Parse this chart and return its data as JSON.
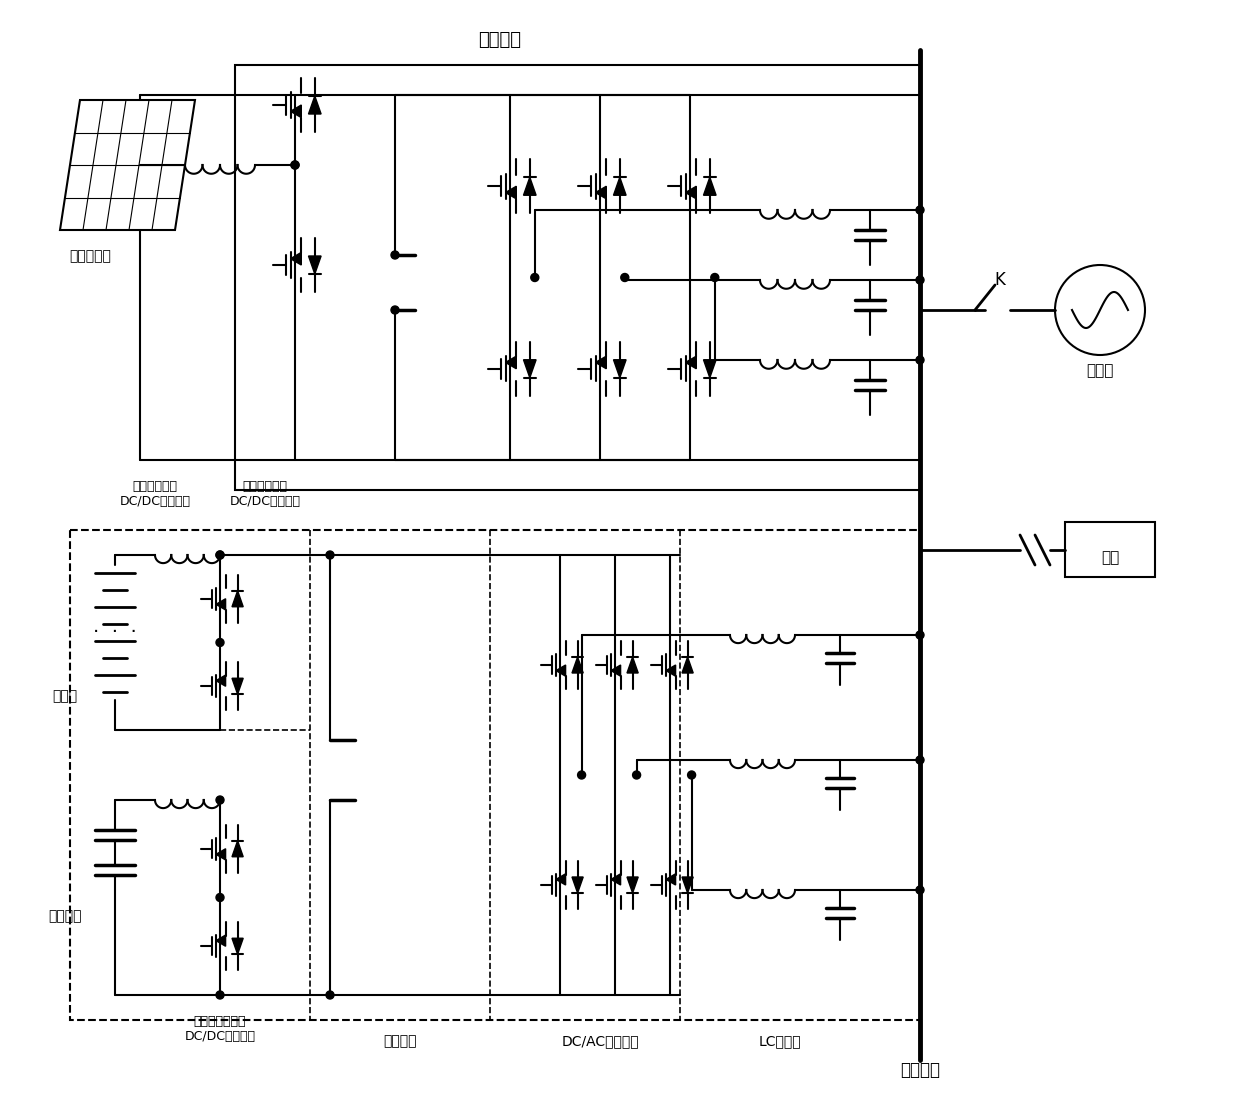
{
  "bg_color": "#ffffff",
  "line_color": "#000000",
  "lw": 1.5,
  "lw_thick": 3.5,
  "labels": {
    "pv_system": "光伏系统",
    "pv_panel": "光伏电池板",
    "battery_dcdc": "蓄电池用双向\nDC/DC变换单元",
    "battery": "蓄电池",
    "supercap": "超级电容",
    "supercap_dcdc": "超级电容用双向\nDC/DC变换单元",
    "dc_bus": "直流母线",
    "dcac": "DC/AC变换单元",
    "lc_filter": "LC滤波器",
    "ac_bus": "交流母线",
    "big_grid": "大电网",
    "load": "负载",
    "K": "K"
  }
}
